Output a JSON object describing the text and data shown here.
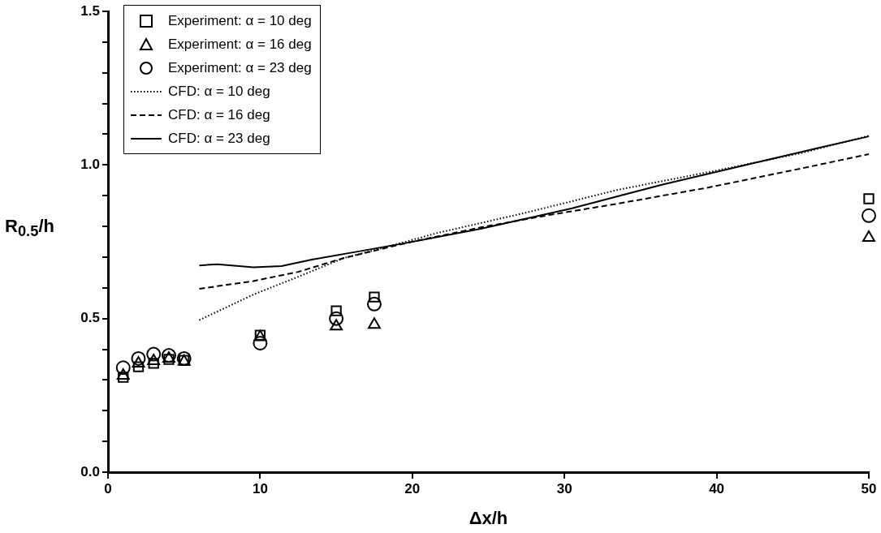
{
  "chart_data": {
    "type": "scatter",
    "xlabel": "Δx/h",
    "ylabel": "R$_{0.5}$/h",
    "xlim": [
      0,
      50
    ],
    "xticks": [
      0,
      10,
      20,
      30,
      40,
      50
    ],
    "ylim": [
      0,
      1.5
    ],
    "yticks": [
      {
        "value": 0,
        "label": "0.0"
      },
      {
        "value": 0.1,
        "label": null
      },
      {
        "value": 0.2,
        "label": null
      },
      {
        "value": 0.3,
        "label": null
      },
      {
        "value": 0.4,
        "label": null
      },
      {
        "value": 0.5,
        "label": "0.5"
      },
      {
        "value": 0.6,
        "label": null
      },
      {
        "value": 0.7,
        "label": null
      },
      {
        "value": 0.8,
        "label": null
      },
      {
        "value": 0.9,
        "label": null
      },
      {
        "value": 1,
        "label": "1.0"
      },
      {
        "value": 1.1,
        "label": null
      },
      {
        "value": 1.2,
        "label": null
      },
      {
        "value": 1.3,
        "label": null
      },
      {
        "value": 1.4,
        "label": null
      },
      {
        "value": 1.5,
        "label": "1.5"
      }
    ],
    "grid": false,
    "legend": "top left",
    "x": [
      1,
      2,
      3,
      4,
      5,
      10,
      15,
      17.5,
      50
    ],
    "series": [
      {
        "name": "Experiment: α = 10 deg",
        "marker": "square",
        "color": "#000000",
        "values": [
          0.309,
          0.343,
          0.354,
          0.367,
          0.364,
          0.446,
          0.525,
          0.57,
          0.89
        ]
      },
      {
        "name": "Experiment: α = 16 deg",
        "marker": "triangle",
        "color": "#000000",
        "values": [
          0.314,
          0.354,
          0.362,
          0.37,
          0.36,
          0.44,
          0.475,
          0.48,
          0.763
        ]
      },
      {
        "name": "Experiment: α = 23 deg",
        "marker": "circle",
        "color": "#000000",
        "values": [
          0.34,
          0.37,
          0.384,
          0.38,
          0.37,
          0.42,
          0.5,
          0.547,
          0.835
        ]
      },
      {
        "name": "CFD: α = 10 deg",
        "type": "line",
        "marker": "none",
        "line_style": "dotted",
        "color": "#000000",
        "x": [
          6,
          9.55,
          12.5,
          15.5,
          18.6,
          21.6,
          27.5,
          33.5,
          39.5,
          45.5,
          50
        ],
        "values": [
          0.495,
          0.578,
          0.636,
          0.697,
          0.737,
          0.778,
          0.845,
          0.919,
          0.977,
          1.038,
          1.095
        ]
      },
      {
        "name": "CFD: α = 16 deg",
        "type": "line",
        "marker": "none",
        "line_style": "dashed",
        "color": "#000000",
        "x": [
          6,
          9.55,
          12.5,
          15.5,
          19.7,
          24.5,
          29,
          33.5,
          39.5,
          45.5,
          50
        ],
        "values": [
          0.597,
          0.622,
          0.652,
          0.697,
          0.747,
          0.797,
          0.837,
          0.874,
          0.927,
          0.988,
          1.035
        ]
      },
      {
        "name": "CFD: α = 23 deg",
        "type": "line",
        "marker": "none",
        "line_style": "solid",
        "color": "#000000",
        "x": [
          6,
          7.2,
          9.55,
          11.4,
          13.4,
          16.4,
          19.7,
          24.5,
          30.5,
          36.5,
          42.5,
          47,
          50
        ],
        "values": [
          0.673,
          0.677,
          0.667,
          0.671,
          0.692,
          0.718,
          0.747,
          0.792,
          0.859,
          0.937,
          1.007,
          1.059,
          1.093
        ]
      }
    ]
  }
}
